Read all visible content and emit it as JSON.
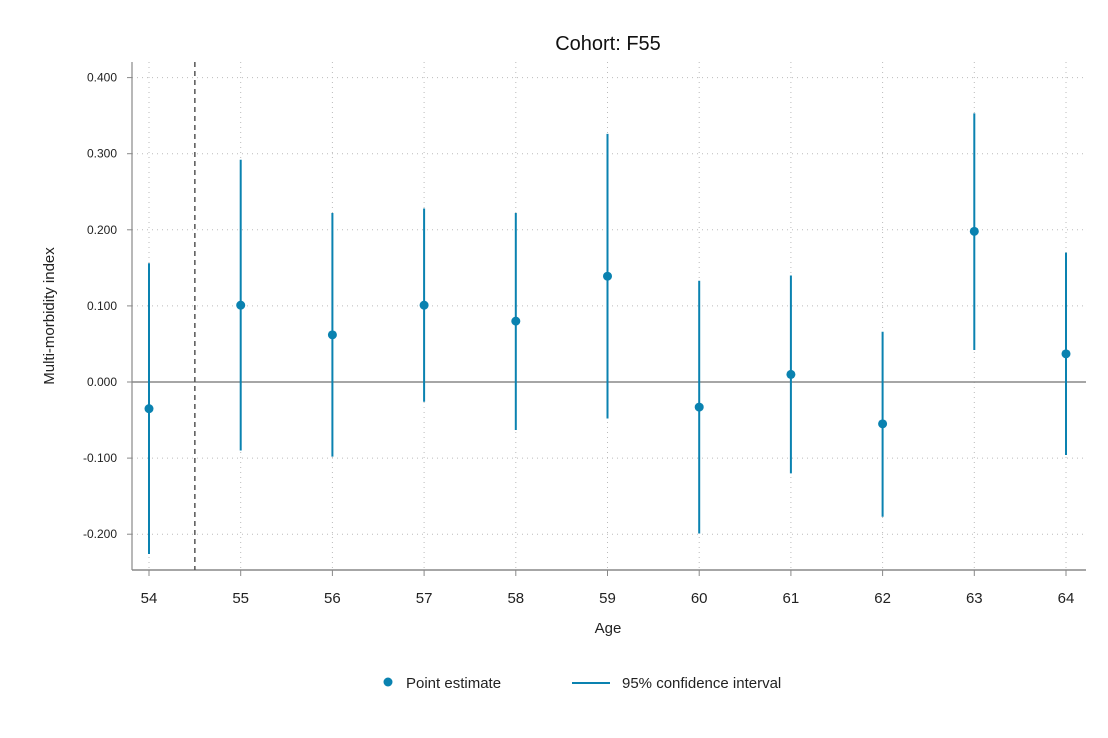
{
  "chart_data": {
    "type": "scatter",
    "title": "Cohort: F55",
    "xlabel": "Age",
    "ylabel": "Multi-morbidity index",
    "x": [
      54,
      55,
      56,
      57,
      58,
      59,
      60,
      61,
      62,
      63,
      64
    ],
    "series": [
      {
        "name": "Point estimate",
        "values": [
          -0.035,
          0.101,
          0.062,
          0.101,
          0.08,
          0.139,
          -0.033,
          0.01,
          -0.055,
          0.198,
          0.037
        ]
      },
      {
        "name": "95% confidence interval",
        "lower": [
          -0.226,
          -0.09,
          -0.098,
          -0.026,
          -0.063,
          -0.048,
          -0.199,
          -0.12,
          -0.177,
          0.042,
          -0.096
        ],
        "upper": [
          0.156,
          0.292,
          0.222,
          0.228,
          0.222,
          0.326,
          0.133,
          0.14,
          0.066,
          0.353,
          0.17
        ]
      }
    ],
    "xlim": [
      54,
      64
    ],
    "ylim": [
      -0.245,
      0.41
    ],
    "y_ticks": [
      -0.2,
      -0.1,
      0.0,
      0.1,
      0.2,
      0.3,
      0.4
    ],
    "y_tick_labels": [
      "-0.200",
      "-0.100",
      "0.000",
      "0.100",
      "0.200",
      "0.300",
      "0.400"
    ],
    "x_tick_labels": [
      "54",
      "55",
      "56",
      "57",
      "58",
      "59",
      "60",
      "61",
      "62",
      "63",
      "64"
    ],
    "reference_line_y": 0,
    "event_line_x": 54.5,
    "grid": true,
    "legend_position": "bottom",
    "colors": {
      "series": "#0a82b0",
      "zero_line": "#888888",
      "axis": "#888888",
      "grid": "#bbbbbb",
      "event_line": "#555555"
    }
  }
}
